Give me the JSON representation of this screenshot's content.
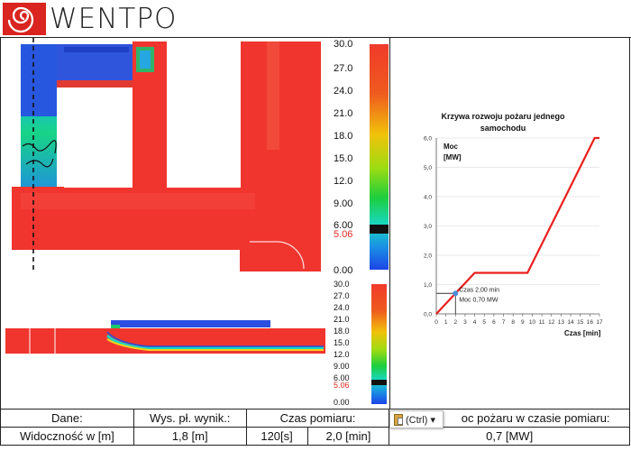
{
  "brand": {
    "logo_text": "WENTPO"
  },
  "colorbar_top": {
    "ticks": [
      "30.0",
      "27.0",
      "24.0",
      "21.0",
      "18.0",
      "15.0",
      "12.0",
      "9.00",
      "6.00",
      "5.06",
      "0.00"
    ],
    "marker_label": "5.06"
  },
  "colorbar_bottom": {
    "ticks": [
      "30.0",
      "27.0",
      "24.0",
      "21.0",
      "18.0",
      "15.0",
      "12.0",
      "9.00",
      "6.00",
      "5.06",
      "0.00"
    ],
    "marker_label": "5.06"
  },
  "chart_data": {
    "type": "line",
    "title": "Krzywa rozwoju pożaru jednego samochodu",
    "ylabel": "Moc [MW]",
    "xlabel": "Czas [min]",
    "xlim": [
      0,
      17
    ],
    "ylim": [
      0,
      6
    ],
    "x_ticks": [
      "0",
      "1",
      "2",
      "3",
      "4",
      "5",
      "6",
      "7",
      "8",
      "9",
      "10",
      "11",
      "12",
      "13",
      "14",
      "15",
      "16",
      "17"
    ],
    "y_ticks": [
      "0,0",
      "1,0",
      "2,0",
      "3,0",
      "4,0",
      "5,0",
      "6,0"
    ],
    "series": [
      {
        "color": "#e8201e",
        "x": [
          0,
          4,
          9.5,
          16.5,
          17
        ],
        "y": [
          0,
          1.4,
          1.4,
          6,
          6
        ]
      }
    ],
    "marker": {
      "x": 2,
      "y": 0.7,
      "label_line1": "Czas 2,00 min",
      "label_line2": "Moc 0,70 MW"
    }
  },
  "table": {
    "row1": {
      "c1": "Dane:",
      "c2": "Wys. pł. wynik.:",
      "c3": "Czas pomiaru:",
      "c4": "oc pożaru w czasie pomiaru:"
    },
    "row2": {
      "c1": "Widoczność w [m]",
      "c2": "1,8 [m]",
      "c3": "120[s]",
      "c4": "2,0 [min]",
      "c5": "0,7 [MW]"
    }
  },
  "paste_popup": {
    "label": "(Ctrl) ▾"
  }
}
